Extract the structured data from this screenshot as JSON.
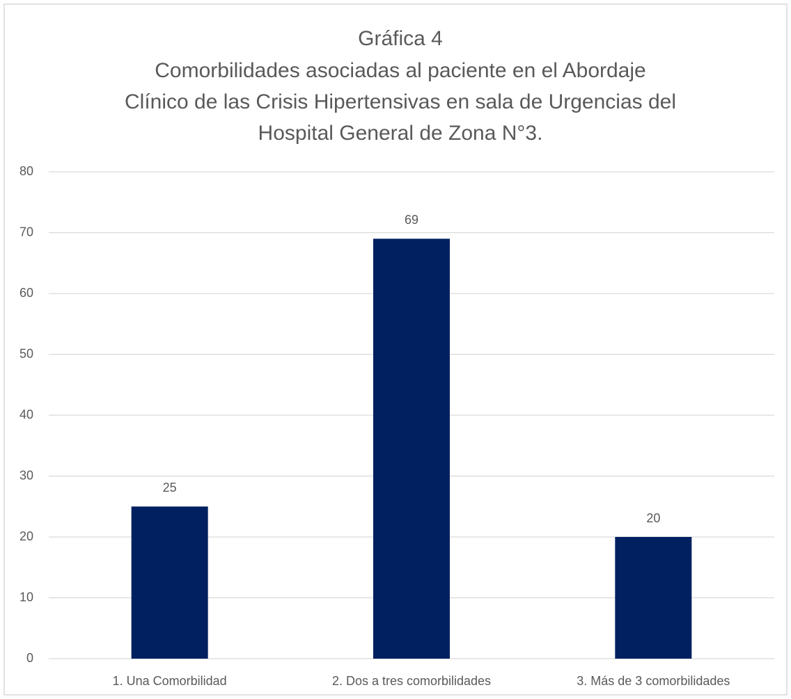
{
  "chart_data": {
    "type": "bar",
    "title": "Gráfica 4",
    "subtitle": [
      "Comorbilidades asociadas al paciente en el Abordaje",
      "Clínico de las Crisis Hipertensivas en sala de Urgencias del",
      "Hospital General de Zona N°3."
    ],
    "categories": [
      "1. Una Comorbilidad",
      "2. Dos a tres comorbilidades",
      "3. Más de 3 comorbilidades"
    ],
    "values": [
      25,
      69,
      20
    ],
    "color": "#002060",
    "ylim": [
      0,
      80
    ],
    "yticks": [
      0,
      10,
      20,
      30,
      40,
      50,
      60,
      70,
      80
    ],
    "grid": true
  }
}
